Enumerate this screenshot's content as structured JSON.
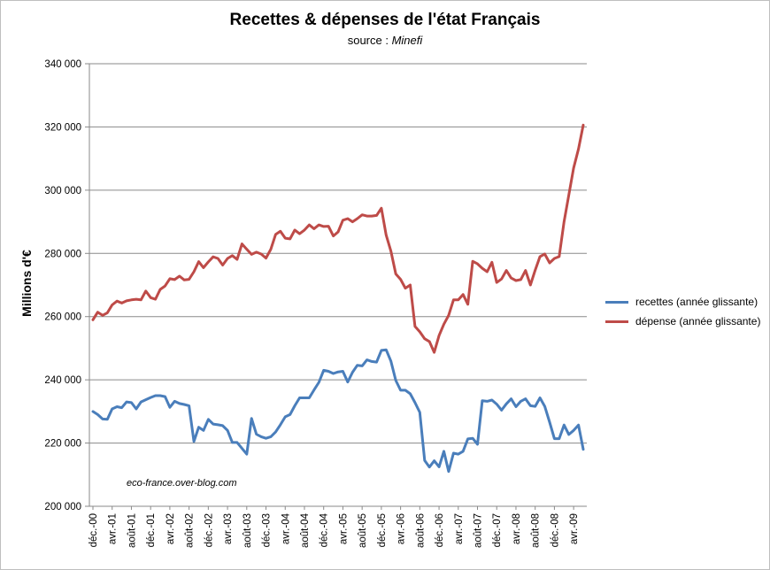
{
  "chart_data": {
    "type": "line",
    "title": "Recettes & dépenses de l'état Français",
    "subtitle_prefix": "source : ",
    "subtitle_source": "Minefi",
    "ylabel": "Millions d'€",
    "xlabel": "",
    "ylim": [
      200000,
      340000
    ],
    "yticks": [
      "200 000",
      "220 000",
      "240 000",
      "260 000",
      "280 000",
      "300 000",
      "320 000",
      "340 000"
    ],
    "grid": "horizontal",
    "legend_position": "right",
    "xtick_labels": [
      "déc.-00",
      "avr.-01",
      "août-01",
      "déc.-01",
      "avr.-02",
      "août-02",
      "déc.-02",
      "avr.-03",
      "août-03",
      "déc.-03",
      "avr.-04",
      "août-04",
      "déc.-04",
      "avr.-05",
      "août-05",
      "déc.-05",
      "avr.-06",
      "août-06",
      "déc.-06",
      "avr.-07",
      "août-07",
      "déc.-07",
      "avr.-08",
      "août-08",
      "déc.-08",
      "avr.-09"
    ],
    "xtick_step_months": 4,
    "series": [
      {
        "name": "recettes (année glissante)",
        "color": "#4a7ebb",
        "values": [
          230000,
          229000,
          227600,
          227500,
          230800,
          231500,
          231200,
          233000,
          232800,
          230800,
          233000,
          233700,
          234400,
          235000,
          235000,
          234700,
          231300,
          233200,
          232500,
          232200,
          231800,
          220500,
          225000,
          224000,
          227500,
          226000,
          225800,
          225500,
          224000,
          220200,
          220200,
          218300,
          216500,
          227800,
          222800,
          222000,
          221500,
          222000,
          223500,
          225800,
          228300,
          229000,
          231800,
          234300,
          234300,
          234300,
          236800,
          239200,
          243000,
          242700,
          242000,
          242500,
          242700,
          239300,
          242400,
          244600,
          244400,
          246300,
          245800,
          245600,
          249300,
          249500,
          245900,
          239800,
          236700,
          236700,
          235600,
          232800,
          229700,
          214500,
          212400,
          214400,
          212500,
          217400,
          211000,
          216800,
          216500,
          217400,
          221300,
          221500,
          219600,
          233400,
          233200,
          233600,
          232300,
          230400,
          232400,
          234000,
          231500,
          233200,
          234000,
          231800,
          231600,
          234300,
          231600,
          226600,
          221400,
          221400,
          225700,
          222700,
          224000,
          225700,
          218000
        ]
      },
      {
        "name": "dépense (année glissante)",
        "color": "#be4b48",
        "values": [
          259000,
          261400,
          260400,
          261200,
          263700,
          264900,
          264300,
          265000,
          265300,
          265500,
          265300,
          268100,
          266000,
          265500,
          268600,
          269700,
          272000,
          271700,
          272800,
          271600,
          271800,
          274200,
          277400,
          275500,
          277300,
          278900,
          278400,
          276300,
          278400,
          279300,
          278100,
          283000,
          281300,
          279700,
          280400,
          279800,
          278500,
          281300,
          286000,
          287000,
          284800,
          284600,
          287400,
          286200,
          287400,
          289000,
          287800,
          289000,
          288500,
          288600,
          285500,
          286800,
          290500,
          291000,
          290000,
          291000,
          292200,
          291800,
          291800,
          292000,
          294300,
          285800,
          280700,
          273500,
          271800,
          269000,
          270000,
          256900,
          255200,
          253000,
          252100,
          248700,
          254000,
          257600,
          260400,
          265300,
          265300,
          267000,
          263900,
          277500,
          276700,
          275300,
          274200,
          277200,
          270800,
          271900,
          274600,
          272200,
          271400,
          271700,
          274600,
          270000,
          274700,
          279000,
          279800,
          277000,
          278400,
          279000,
          290000,
          298500,
          307000,
          313000,
          320600
        ]
      }
    ]
  },
  "watermark": "eco-france.over-blog.com"
}
